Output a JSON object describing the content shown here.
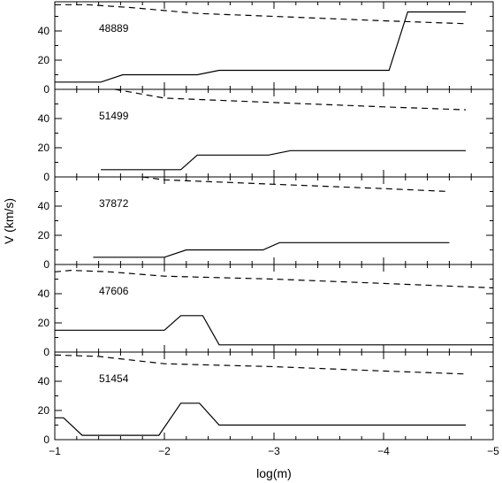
{
  "chart_data": {
    "type": "line",
    "xlabel": "log(m)",
    "ylabel": "V (km/s)",
    "xlim": [
      -1,
      -5
    ],
    "ylim": [
      0,
      60
    ],
    "x_ticks": [
      -1,
      -2,
      -3,
      -4,
      -5
    ],
    "y_ticks": [
      0,
      20,
      40
    ],
    "panels": [
      {
        "label": "48889",
        "series": [
          {
            "style": "solid",
            "x": [
              -1.0,
              -1.42,
              -1.62,
              -2.3,
              -2.5,
              -4.05,
              -4.22,
              -4.75
            ],
            "y": [
              5,
              5,
              10,
              10,
              13,
              13,
              53,
              53
            ]
          },
          {
            "style": "dashed",
            "x": [
              -1.0,
              -1.3,
              -1.7,
              -2.0,
              -2.3,
              -3.0,
              -4.0,
              -4.75
            ],
            "y": [
              58,
              58,
              56,
              54,
              52,
              50,
              47,
              45
            ]
          }
        ]
      },
      {
        "label": "51499",
        "series": [
          {
            "style": "solid",
            "x": [
              -1.42,
              -2.15,
              -2.3,
              -2.95,
              -3.15,
              -4.75
            ],
            "y": [
              5,
              5,
              15,
              15,
              18,
              18
            ]
          },
          {
            "style": "dashed",
            "x": [
              -1.55,
              -2.0,
              -3.0,
              -4.0,
              -4.75
            ],
            "y": [
              60,
              54,
              51,
              48,
              46
            ]
          }
        ]
      },
      {
        "label": "37872",
        "series": [
          {
            "style": "solid",
            "x": [
              -1.35,
              -2.0,
              -2.2,
              -2.9,
              -3.05,
              -4.6
            ],
            "y": [
              5,
              5,
              10,
              10,
              15,
              15
            ]
          },
          {
            "style": "dashed",
            "x": [
              -1.8,
              -2.0,
              -3.0,
              -4.0,
              -4.6
            ],
            "y": [
              60,
              58,
              55,
              52,
              50
            ]
          }
        ]
      },
      {
        "label": "47606",
        "series": [
          {
            "style": "solid",
            "x": [
              -1.0,
              -2.0,
              -2.15,
              -2.35,
              -2.5,
              -5.0
            ],
            "y": [
              15,
              15,
              25,
              25,
              5,
              5
            ]
          },
          {
            "style": "dashed",
            "x": [
              -1.0,
              -1.15,
              -1.5,
              -2.0,
              -3.0,
              -4.0,
              -5.0
            ],
            "y": [
              55,
              56,
              55,
              52,
              50,
              47,
              44
            ]
          }
        ]
      },
      {
        "label": "51454",
        "series": [
          {
            "style": "solid",
            "x": [
              -1.0,
              -1.08,
              -1.25,
              -1.95,
              -2.15,
              -2.32,
              -2.5,
              -4.75
            ],
            "y": [
              15,
              15,
              3,
              3,
              25,
              25,
              10,
              10
            ]
          },
          {
            "style": "dashed",
            "x": [
              -1.0,
              -1.4,
              -2.0,
              -3.0,
              -4.0,
              -4.75
            ],
            "y": [
              58,
              57,
              52,
              50,
              47,
              45
            ]
          }
        ]
      }
    ]
  }
}
